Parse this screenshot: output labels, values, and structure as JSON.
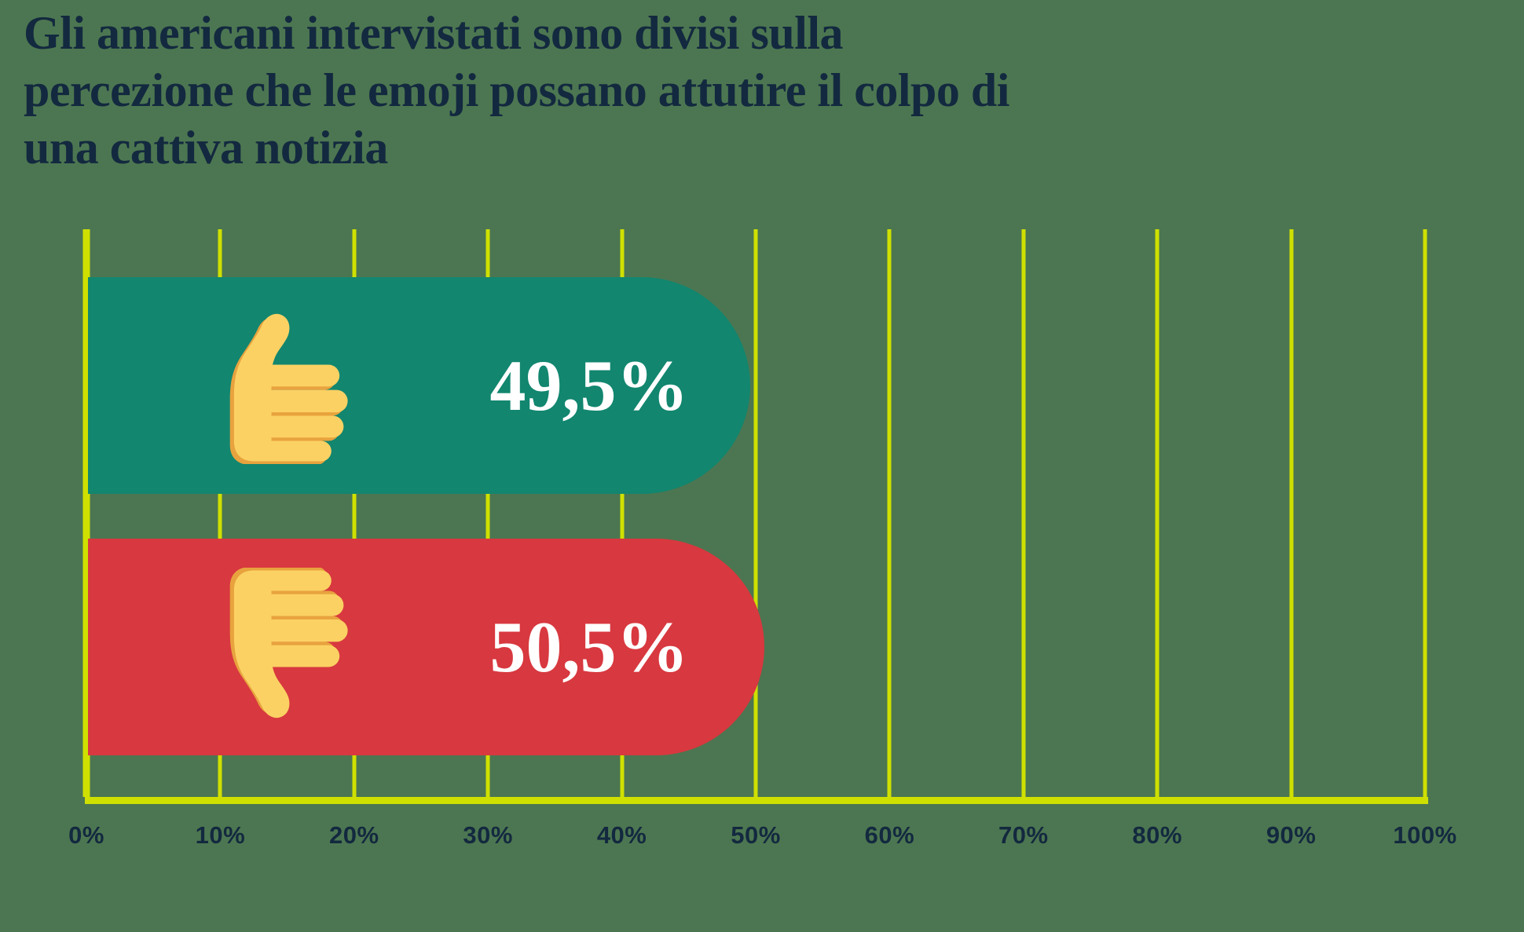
{
  "title_lines": [
    "Gli americani intervistati sono divisi sulla",
    "percezione che le emoji possano attutire il colpo di",
    "una cattiva notizia"
  ],
  "chart_data": {
    "type": "bar",
    "orientation": "horizontal",
    "title": "Gli americani intervistati sono divisi sulla percezione che le emoji possano attutire il colpo di una cattiva notizia",
    "categories": [
      "thumbs-up",
      "thumbs-down"
    ],
    "values": [
      49.5,
      50.5
    ],
    "value_labels": [
      "49,5%",
      "50,5%"
    ],
    "xlabel": "",
    "ylabel": "",
    "xlim": [
      0,
      100
    ],
    "x_ticks": [
      "0%",
      "10%",
      "20%",
      "30%",
      "40%",
      "50%",
      "60%",
      "70%",
      "80%",
      "90%",
      "100%"
    ],
    "grid": "vertical-gridlines-on",
    "legend": "none"
  },
  "bars": [
    {
      "icon": "thumbs-up-icon",
      "value_label": "49,5%",
      "color": "#12866F"
    },
    {
      "icon": "thumbs-down-icon",
      "value_label": "50,5%",
      "color": "#D8383F"
    }
  ],
  "colors": {
    "background": "#4C7651",
    "bar_positive": "#12866F",
    "bar_negative": "#D8383F",
    "gridline": "#CFE000",
    "axis_line": "#CFE000",
    "title_text": "#13293F",
    "tick_text": "#13293F",
    "value_text": "#FFFFFF",
    "emoji_skin": "#FBD163",
    "emoji_shade": "#E8A33E"
  }
}
